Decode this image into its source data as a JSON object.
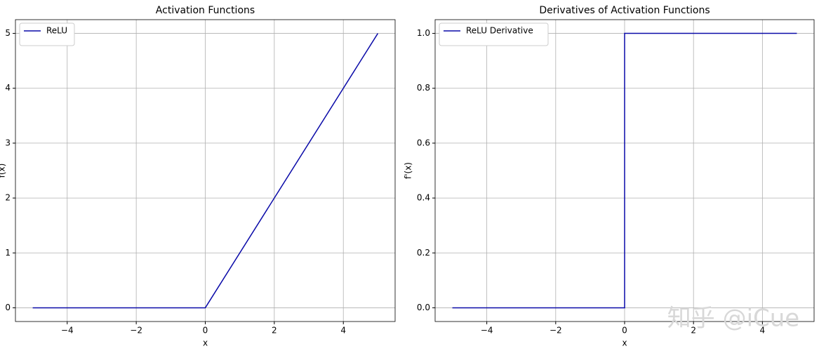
{
  "chart_data": [
    {
      "type": "line",
      "title": "Activation Functions",
      "xlabel": "x",
      "ylabel": "f(x)",
      "x": [
        -5,
        0,
        5
      ],
      "series": [
        {
          "name": "ReLU",
          "color": "#0a0aa8",
          "values": [
            0,
            0,
            5
          ]
        }
      ],
      "xlim": [
        -5.5,
        5.5
      ],
      "ylim": [
        -0.25,
        5.25
      ],
      "xticks": [
        {
          "value": -4,
          "label": "−4"
        },
        {
          "value": -2,
          "label": "−2"
        },
        0,
        2,
        4
      ],
      "yticks": [
        0,
        1,
        2,
        3,
        4,
        5
      ],
      "grid": true,
      "legend": "upper-left"
    },
    {
      "type": "line",
      "title": "Derivatives of Activation Functions",
      "xlabel": "x",
      "ylabel": "f'(x)",
      "x": [
        -5,
        0,
        0,
        5
      ],
      "series": [
        {
          "name": "ReLU Derivative",
          "color": "#0a0aa8",
          "values": [
            0,
            0,
            1,
            1
          ]
        }
      ],
      "xlim": [
        -5.5,
        5.5
      ],
      "ylim": [
        -0.05,
        1.05
      ],
      "xticks": [
        {
          "value": -4,
          "label": "−4"
        },
        {
          "value": -2,
          "label": "−2"
        },
        0,
        2,
        4
      ],
      "yticks": [
        {
          "value": 0,
          "label": "0.0"
        },
        0.2,
        0.4,
        0.6,
        0.8,
        {
          "value": 1,
          "label": "1.0"
        }
      ],
      "grid": true,
      "legend": "upper-left"
    }
  ],
  "watermark": "知乎 @iCue"
}
